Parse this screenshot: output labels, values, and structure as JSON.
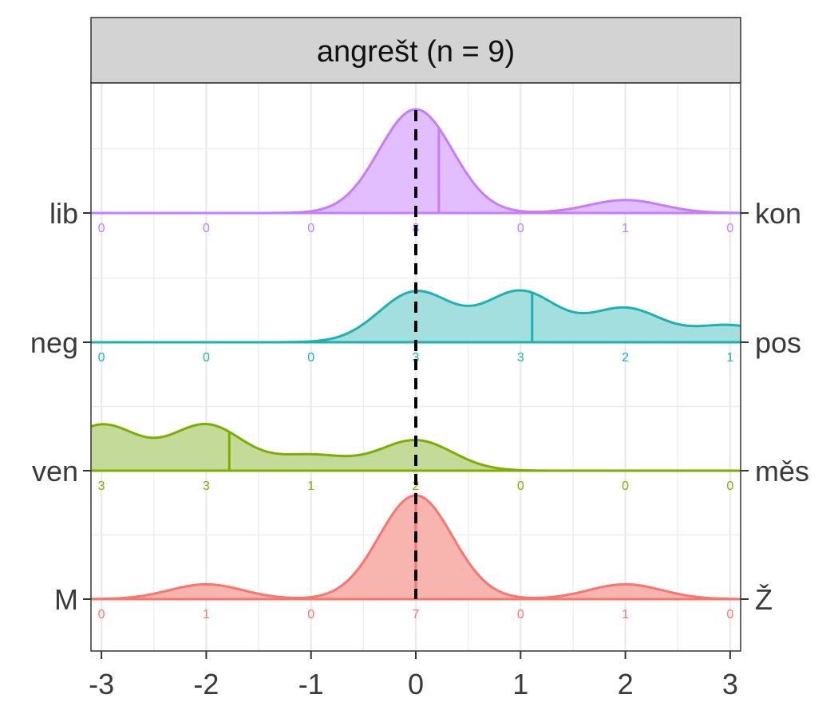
{
  "chart_data": {
    "type": "ridgeline",
    "title": "angrešt (n = 9)",
    "xlim": [
      -3.1,
      3.1
    ],
    "x_ticks": [
      -3,
      -2,
      -1,
      0,
      1,
      2,
      3
    ],
    "x_tick_labels": [
      "-3",
      "-2",
      "-1",
      "0",
      "1",
      "2",
      "3"
    ],
    "grid": true,
    "reference_line_x": 0,
    "count_positions": [
      -3,
      -2,
      -1,
      0,
      1,
      2,
      3
    ],
    "series": [
      {
        "left_label": "M",
        "right_label": "Ž",
        "color": "#F8766D",
        "fill": "#F8B4AE",
        "mean": 0.0,
        "peak": 1.0,
        "counts": [
          0,
          1,
          0,
          7,
          0,
          1,
          0
        ],
        "count_labels": [
          "0",
          "1",
          "0",
          "7",
          "0",
          "1",
          "0"
        ]
      },
      {
        "left_label": "ven",
        "right_label": "měs",
        "color": "#7CAE00",
        "fill": "#C3DA98",
        "mean": -1.78,
        "peak": 0.45,
        "counts": [
          3,
          3,
          1,
          2,
          0,
          0,
          0
        ],
        "count_labels": [
          "3",
          "3",
          "1",
          "2",
          "0",
          "0",
          "0"
        ]
      },
      {
        "left_label": "neg",
        "right_label": "pos",
        "color": "#1DB2B2",
        "fill": "#A3DFDF",
        "mean": 1.11,
        "peak": 0.5,
        "counts": [
          0,
          0,
          0,
          3,
          3,
          2,
          1
        ],
        "count_labels": [
          "0",
          "0",
          "0",
          "3",
          "3",
          "2",
          "1"
        ]
      },
      {
        "left_label": "lib",
        "right_label": "kon",
        "color": "#C77CFF",
        "fill": "#E3BEFF",
        "mean": 0.22,
        "peak": 1.0,
        "counts": [
          0,
          0,
          0,
          8,
          0,
          1,
          0
        ],
        "count_labels": [
          "0",
          "0",
          "0",
          "8",
          "0",
          "1",
          "0"
        ]
      }
    ]
  }
}
